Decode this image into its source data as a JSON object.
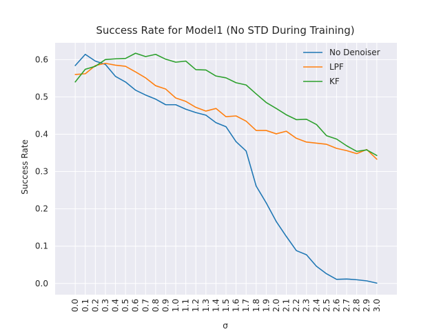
{
  "chart_data": {
    "type": "line",
    "title": "Success Rate for Model1 (No STD During Training)",
    "xlabel": "σ",
    "ylabel": "Success Rate",
    "x": [
      0.0,
      0.1,
      0.2,
      0.3,
      0.4,
      0.5,
      0.6,
      0.7,
      0.8,
      0.9,
      1.0,
      1.1,
      1.2,
      1.3,
      1.4,
      1.5,
      1.6,
      1.7,
      1.8,
      1.9,
      2.0,
      2.1,
      2.2,
      2.3,
      2.4,
      2.5,
      2.6,
      2.7,
      2.8,
      2.9,
      3.0
    ],
    "x_tick_labels": [
      "0.0",
      "0.1",
      "0.2",
      "0.3",
      "0.4",
      "0.5",
      "0.6",
      "0.7",
      "0.8",
      "0.9",
      "1.0",
      "1.1",
      "1.2",
      "1.3",
      "1.4",
      "1.5",
      "1.6",
      "1.7",
      "1.8",
      "1.9",
      "2.0",
      "2.1",
      "2.2",
      "2.3",
      "2.4",
      "2.5",
      "2.6",
      "2.7",
      "2.8",
      "2.9",
      "3.0"
    ],
    "xlim": [
      -0.2,
      3.2
    ],
    "ylim": [
      -0.03,
      0.645
    ],
    "y_ticks": [
      0.0,
      0.1,
      0.2,
      0.3,
      0.4,
      0.5,
      0.6
    ],
    "y_tick_labels": [
      "0.0",
      "0.1",
      "0.2",
      "0.3",
      "0.4",
      "0.5",
      "0.6"
    ],
    "grid": true,
    "legend_position": "top-right",
    "colors": {
      "background": "#eaeaf2",
      "grid": "#ffffff",
      "text": "#262626"
    },
    "series": [
      {
        "name": "No Denoiser",
        "color": "#1f77b4",
        "values": [
          0.584,
          0.614,
          0.596,
          0.587,
          0.555,
          0.54,
          0.518,
          0.505,
          0.494,
          0.479,
          0.479,
          0.467,
          0.458,
          0.451,
          0.431,
          0.42,
          0.38,
          0.355,
          0.261,
          0.216,
          0.166,
          0.126,
          0.088,
          0.077,
          0.046,
          0.026,
          0.011,
          0.012,
          0.01,
          0.007,
          0.001
        ]
      },
      {
        "name": "LPF",
        "color": "#ff7f0e",
        "values": [
          0.56,
          0.562,
          0.584,
          0.59,
          0.585,
          0.582,
          0.567,
          0.551,
          0.53,
          0.521,
          0.497,
          0.488,
          0.472,
          0.462,
          0.469,
          0.447,
          0.449,
          0.435,
          0.41,
          0.41,
          0.401,
          0.408,
          0.389,
          0.379,
          0.376,
          0.373,
          0.362,
          0.356,
          0.348,
          0.359,
          0.333
        ]
      },
      {
        "name": "KF",
        "color": "#2ca02c",
        "values": [
          0.54,
          0.574,
          0.582,
          0.6,
          0.602,
          0.603,
          0.617,
          0.608,
          0.614,
          0.601,
          0.593,
          0.596,
          0.573,
          0.572,
          0.556,
          0.551,
          0.538,
          0.532,
          0.508,
          0.485,
          0.469,
          0.452,
          0.439,
          0.44,
          0.426,
          0.396,
          0.387,
          0.369,
          0.354,
          0.358,
          0.343
        ]
      }
    ]
  }
}
